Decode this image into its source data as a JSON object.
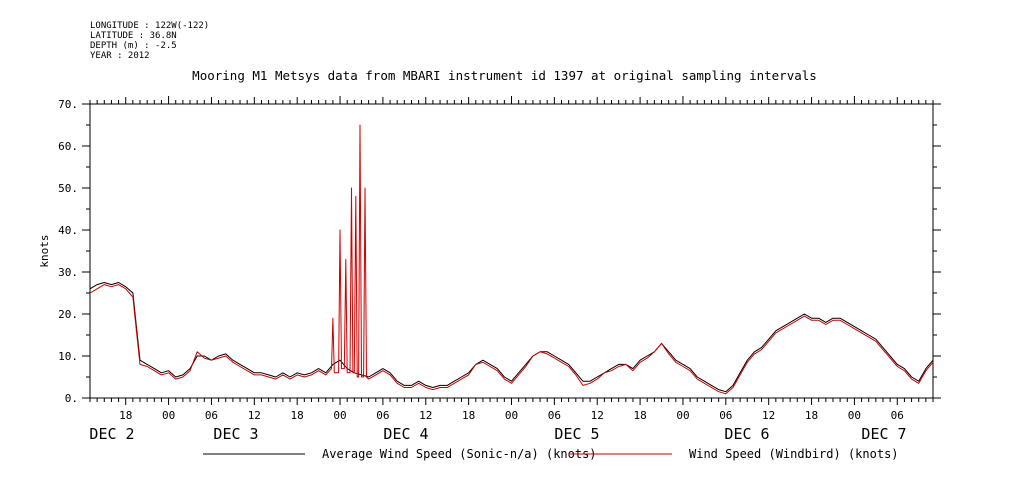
{
  "header": {
    "longitude": "LONGITUDE : 122W(-122)",
    "latitude": "LATITUDE : 36.8N",
    "depth": "DEPTH (m) : -2.5",
    "year": "YEAR : 2012"
  },
  "chart_data": {
    "type": "line",
    "title": "Mooring M1 Metsys data from MBARI instrument id 1397 at original sampling intervals",
    "xlabel": "",
    "ylabel": "knots",
    "ylim": [
      0,
      70
    ],
    "xlim_hours": [
      13,
      131
    ],
    "y_ticks": [
      0,
      10,
      20,
      30,
      40,
      50,
      60,
      70
    ],
    "x_tick_labels": [
      "18",
      "00",
      "06",
      "12",
      "18",
      "00",
      "06",
      "12",
      "18",
      "00",
      "06",
      "12",
      "18",
      "00",
      "06",
      "12",
      "18",
      "00",
      "06",
      "12"
    ],
    "date_labels": [
      "DEC  2",
      "DEC  3",
      "DEC  4",
      "DEC  5",
      "DEC  6",
      "DEC  7"
    ],
    "grid": false,
    "legend_position": "bottom",
    "series": [
      {
        "name": "Average Wind Speed (Sonic-n/a) (knots)",
        "color": "#000000",
        "points": [
          [
            13,
            26
          ],
          [
            14,
            27
          ],
          [
            15,
            27.5
          ],
          [
            16,
            27
          ],
          [
            17,
            27.5
          ],
          [
            18,
            26.5
          ],
          [
            19,
            25
          ],
          [
            19.5,
            17
          ],
          [
            20,
            9
          ],
          [
            21,
            8
          ],
          [
            22,
            7
          ],
          [
            23,
            6
          ],
          [
            24,
            6.5
          ],
          [
            25,
            5
          ],
          [
            26,
            5.5
          ],
          [
            27,
            7
          ],
          [
            28,
            10
          ],
          [
            29,
            10
          ],
          [
            30,
            9
          ],
          [
            31,
            10
          ],
          [
            32,
            10.5
          ],
          [
            33,
            9
          ],
          [
            34,
            8
          ],
          [
            35,
            7
          ],
          [
            36,
            6
          ],
          [
            37,
            6
          ],
          [
            38,
            5.5
          ],
          [
            39,
            5
          ],
          [
            40,
            6
          ],
          [
            41,
            5
          ],
          [
            42,
            6
          ],
          [
            43,
            5.5
          ],
          [
            44,
            6
          ],
          [
            45,
            7
          ],
          [
            46,
            6
          ],
          [
            47,
            8
          ],
          [
            48,
            9
          ],
          [
            49,
            7
          ],
          [
            50,
            6
          ],
          [
            51,
            5.5
          ],
          [
            52,
            5
          ],
          [
            53,
            6
          ],
          [
            54,
            7
          ],
          [
            55,
            6
          ],
          [
            56,
            4
          ],
          [
            57,
            3
          ],
          [
            58,
            3
          ],
          [
            59,
            4
          ],
          [
            60,
            3
          ],
          [
            61,
            2.5
          ],
          [
            62,
            3
          ],
          [
            63,
            3
          ],
          [
            64,
            4
          ],
          [
            65,
            5
          ],
          [
            66,
            6
          ],
          [
            67,
            8
          ],
          [
            68,
            9
          ],
          [
            69,
            8
          ],
          [
            70,
            7
          ],
          [
            71,
            5
          ],
          [
            72,
            4
          ],
          [
            73,
            6
          ],
          [
            74,
            8
          ],
          [
            75,
            10
          ],
          [
            76,
            11
          ],
          [
            77,
            11
          ],
          [
            78,
            10
          ],
          [
            79,
            9
          ],
          [
            80,
            8
          ],
          [
            81,
            6
          ],
          [
            82,
            4
          ],
          [
            83,
            4
          ],
          [
            84,
            5
          ],
          [
            85,
            6
          ],
          [
            86,
            7
          ],
          [
            87,
            8
          ],
          [
            88,
            8
          ],
          [
            89,
            7
          ],
          [
            90,
            9
          ],
          [
            91,
            10
          ],
          [
            92,
            11
          ],
          [
            93,
            13
          ],
          [
            94,
            11
          ],
          [
            95,
            9
          ],
          [
            96,
            8
          ],
          [
            97,
            7
          ],
          [
            98,
            5
          ],
          [
            99,
            4
          ],
          [
            100,
            3
          ],
          [
            101,
            2
          ],
          [
            102,
            1.5
          ],
          [
            103,
            3
          ],
          [
            104,
            6
          ],
          [
            105,
            9
          ],
          [
            106,
            11
          ],
          [
            107,
            12
          ],
          [
            108,
            14
          ],
          [
            109,
            16
          ],
          [
            110,
            17
          ],
          [
            111,
            18
          ],
          [
            112,
            19
          ],
          [
            113,
            20
          ],
          [
            114,
            19
          ],
          [
            115,
            19
          ],
          [
            116,
            18
          ],
          [
            117,
            19
          ],
          [
            118,
            19
          ],
          [
            119,
            18
          ],
          [
            120,
            17
          ],
          [
            121,
            16
          ],
          [
            122,
            15
          ],
          [
            123,
            14
          ],
          [
            124,
            12
          ],
          [
            125,
            10
          ],
          [
            126,
            8
          ],
          [
            127,
            7
          ],
          [
            128,
            5
          ],
          [
            129,
            4
          ],
          [
            130,
            7
          ],
          [
            131,
            9
          ]
        ]
      },
      {
        "name": "Wind Speed (Windbird) (knots)",
        "color": "#cc0000",
        "points": [
          [
            13,
            25
          ],
          [
            14,
            26
          ],
          [
            15,
            27
          ],
          [
            16,
            26.5
          ],
          [
            17,
            27
          ],
          [
            18,
            26
          ],
          [
            19,
            24
          ],
          [
            19.5,
            16
          ],
          [
            20,
            8
          ],
          [
            21,
            7.5
          ],
          [
            22,
            6.5
          ],
          [
            23,
            5.5
          ],
          [
            24,
            6
          ],
          [
            25,
            4.5
          ],
          [
            26,
            5
          ],
          [
            27,
            6.5
          ],
          [
            28,
            11
          ],
          [
            29,
            9.5
          ],
          [
            30,
            9
          ],
          [
            31,
            9.5
          ],
          [
            32,
            10
          ],
          [
            33,
            8.5
          ],
          [
            34,
            7.5
          ],
          [
            35,
            6.5
          ],
          [
            36,
            5.5
          ],
          [
            37,
            5.5
          ],
          [
            38,
            5
          ],
          [
            39,
            4.5
          ],
          [
            40,
            5.5
          ],
          [
            41,
            4.5
          ],
          [
            42,
            5.5
          ],
          [
            43,
            5
          ],
          [
            44,
            5.5
          ],
          [
            45,
            6.5
          ],
          [
            46,
            5.5
          ],
          [
            46.8,
            7
          ],
          [
            47,
            19
          ],
          [
            47.2,
            6
          ],
          [
            47.8,
            6
          ],
          [
            48,
            40
          ],
          [
            48.2,
            7
          ],
          [
            48.6,
            7
          ],
          [
            48.8,
            33
          ],
          [
            49,
            6
          ],
          [
            49.4,
            6
          ],
          [
            49.6,
            50
          ],
          [
            49.8,
            6
          ],
          [
            50,
            6
          ],
          [
            50.2,
            48
          ],
          [
            50.4,
            5
          ],
          [
            50.6,
            5
          ],
          [
            50.8,
            65
          ],
          [
            51,
            5
          ],
          [
            51.3,
            5
          ],
          [
            51.5,
            50
          ],
          [
            51.7,
            5
          ],
          [
            52,
            4.5
          ],
          [
            53,
            5.5
          ],
          [
            54,
            6.5
          ],
          [
            55,
            5.5
          ],
          [
            56,
            3.5
          ],
          [
            57,
            2.5
          ],
          [
            58,
            2.5
          ],
          [
            59,
            3.5
          ],
          [
            60,
            2.5
          ],
          [
            61,
            2
          ],
          [
            62,
            2.5
          ],
          [
            63,
            2.5
          ],
          [
            64,
            3.5
          ],
          [
            65,
            4.5
          ],
          [
            66,
            5.5
          ],
          [
            67,
            8
          ],
          [
            68,
            8.5
          ],
          [
            69,
            7.5
          ],
          [
            70,
            6.5
          ],
          [
            71,
            4.5
          ],
          [
            72,
            3.5
          ],
          [
            73,
            5.5
          ],
          [
            74,
            7.5
          ],
          [
            75,
            10
          ],
          [
            76,
            11
          ],
          [
            77,
            10.5
          ],
          [
            78,
            9.5
          ],
          [
            79,
            8.5
          ],
          [
            80,
            7.5
          ],
          [
            81,
            5.5
          ],
          [
            82,
            3
          ],
          [
            83,
            3.5
          ],
          [
            84,
            4.5
          ],
          [
            85,
            6
          ],
          [
            86,
            6.5
          ],
          [
            87,
            7.5
          ],
          [
            88,
            8
          ],
          [
            89,
            6.5
          ],
          [
            90,
            8.5
          ],
          [
            91,
            9.5
          ],
          [
            92,
            11
          ],
          [
            93,
            13
          ],
          [
            94,
            10.5
          ],
          [
            95,
            8.5
          ],
          [
            96,
            7.5
          ],
          [
            97,
            6.5
          ],
          [
            98,
            4.5
          ],
          [
            99,
            3.5
          ],
          [
            100,
            2.5
          ],
          [
            101,
            1.5
          ],
          [
            102,
            1
          ],
          [
            103,
            2.5
          ],
          [
            104,
            5.5
          ],
          [
            105,
            8.5
          ],
          [
            106,
            10.5
          ],
          [
            107,
            11.5
          ],
          [
            108,
            13.5
          ],
          [
            109,
            15.5
          ],
          [
            110,
            16.5
          ],
          [
            111,
            17.5
          ],
          [
            112,
            18.5
          ],
          [
            113,
            19.5
          ],
          [
            114,
            18.5
          ],
          [
            115,
            18.5
          ],
          [
            116,
            17.5
          ],
          [
            117,
            18.5
          ],
          [
            118,
            18.5
          ],
          [
            119,
            17.5
          ],
          [
            120,
            16.5
          ],
          [
            121,
            15.5
          ],
          [
            122,
            14.5
          ],
          [
            123,
            13.5
          ],
          [
            124,
            11.5
          ],
          [
            125,
            9.5
          ],
          [
            126,
            7.5
          ],
          [
            127,
            6.5
          ],
          [
            128,
            4.5
          ],
          [
            129,
            3.5
          ],
          [
            130,
            6.5
          ],
          [
            131,
            8.5
          ]
        ]
      }
    ]
  }
}
